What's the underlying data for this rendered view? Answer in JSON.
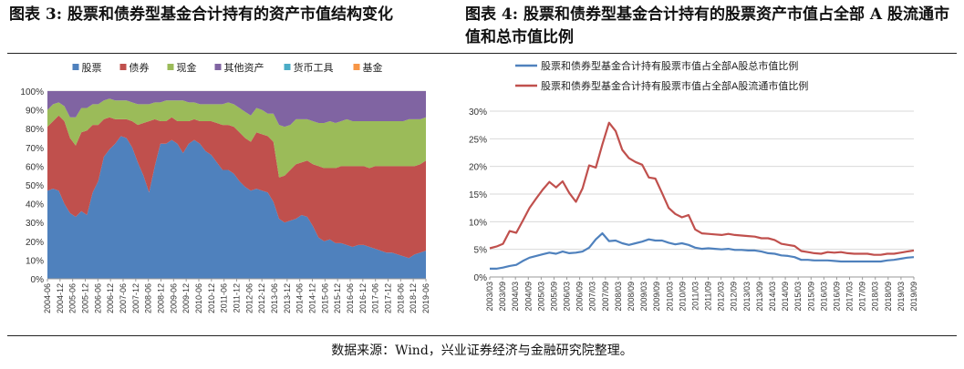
{
  "titles": {
    "left": "图表 3: 股票和债券型基金合计持有的资产市值结构变化",
    "right": "图表 4: 股票和债券型基金合计持有的股票资产市值占全部 A 股流通市值和总市值比例"
  },
  "source": "数据来源：Wind，兴业证券经济与金融研究院整理。",
  "chart_data": [
    {
      "type": "area",
      "stacked": true,
      "title": "图表 3: 股票和债券型基金合计持有的资产市值结构变化",
      "xlabel": "",
      "ylabel": "",
      "ylim": [
        0,
        100
      ],
      "yticks": [
        "0%",
        "10%",
        "20%",
        "30%",
        "40%",
        "50%",
        "60%",
        "70%",
        "80%",
        "90%",
        "100%"
      ],
      "x_ticks": [
        "2004-06",
        "2004-12",
        "2005-06",
        "2005-12",
        "2006-06",
        "2006-12",
        "2007-06",
        "2007-12",
        "2008-06",
        "2008-12",
        "2009-06",
        "2009-12",
        "2010-06",
        "2010-12",
        "2011-06",
        "2011-12",
        "2012-06",
        "2012-12",
        "2013-06",
        "2013-12",
        "2014-06",
        "2014-12",
        "2015-06",
        "2015-12",
        "2016-06",
        "2016-12",
        "2017-06",
        "2017-12",
        "2018-06",
        "2018-12",
        "2019-06"
      ],
      "legend_position": "top",
      "colors": {
        "股票": "#4f81bd",
        "债券": "#c0504d",
        "现金": "#9bbb59",
        "其他资产": "#8064a2",
        "货币工具": "#4bacc6",
        "基金": "#f79646"
      },
      "series": [
        {
          "name": "股票",
          "values": [
            47,
            48,
            47,
            40,
            35,
            33,
            36,
            34,
            46,
            52,
            65,
            69,
            72,
            76,
            75,
            70,
            62,
            55,
            46,
            60,
            72,
            72,
            74,
            72,
            67,
            72,
            74,
            72,
            68,
            66,
            62,
            58,
            58,
            56,
            52,
            49,
            47,
            48,
            47,
            46,
            41,
            32,
            30,
            31,
            32,
            34,
            33,
            28,
            22,
            20,
            21,
            19,
            19,
            18,
            17,
            18,
            18,
            17,
            16,
            15,
            14,
            14,
            13,
            12,
            11,
            13,
            14,
            15
          ]
        },
        {
          "name": "债券",
          "values": [
            34,
            36,
            40,
            44,
            40,
            38,
            42,
            45,
            36,
            30,
            20,
            17,
            13,
            9,
            10,
            14,
            20,
            28,
            38,
            25,
            12,
            12,
            12,
            12,
            17,
            12,
            11,
            12,
            16,
            18,
            21,
            24,
            24,
            25,
            26,
            26,
            26,
            30,
            30,
            30,
            32,
            22,
            25,
            27,
            29,
            28,
            30,
            33,
            38,
            39,
            38,
            40,
            41,
            42,
            43,
            42,
            42,
            42,
            44,
            45,
            46,
            46,
            47,
            48,
            49,
            47,
            47,
            48
          ]
        },
        {
          "name": "现金",
          "values": [
            9,
            9,
            7,
            8,
            11,
            15,
            13,
            12,
            11,
            11,
            10,
            10,
            10,
            10,
            10,
            10,
            11,
            10,
            9,
            9,
            10,
            11,
            9,
            11,
            11,
            10,
            9,
            9,
            9,
            9,
            10,
            11,
            12,
            12,
            13,
            14,
            14,
            13,
            13,
            12,
            15,
            28,
            26,
            24,
            24,
            23,
            22,
            23,
            23,
            24,
            25,
            24,
            24,
            25,
            24,
            24,
            24,
            25,
            24,
            24,
            24,
            24,
            24,
            24,
            25,
            25,
            24,
            23
          ]
        },
        {
          "name": "其他资产",
          "values": [
            10,
            7,
            6,
            8,
            14,
            14,
            9,
            9,
            7,
            7,
            5,
            4,
            5,
            5,
            5,
            6,
            7,
            7,
            7,
            6,
            6,
            5,
            5,
            5,
            5,
            6,
            6,
            7,
            7,
            7,
            7,
            7,
            6,
            7,
            9,
            11,
            13,
            9,
            10,
            12,
            12,
            18,
            19,
            18,
            15,
            15,
            15,
            16,
            17,
            17,
            16,
            17,
            16,
            15,
            16,
            16,
            16,
            16,
            16,
            16,
            16,
            16,
            16,
            16,
            15,
            15,
            15,
            14
          ]
        },
        {
          "name": "货币工具",
          "values": [
            0,
            0,
            0,
            0,
            0,
            0,
            0,
            0,
            0,
            0,
            0,
            0,
            0,
            0,
            0,
            0,
            0,
            0,
            0,
            0,
            0,
            0,
            0,
            0,
            0,
            0,
            0,
            0,
            0,
            0,
            0,
            0,
            0,
            0,
            0,
            0,
            0,
            0,
            0,
            0,
            0,
            0,
            0,
            0,
            0,
            0,
            0,
            0,
            0,
            0,
            0,
            0,
            0,
            0,
            0,
            0,
            0,
            0,
            0,
            0,
            0,
            0,
            0,
            0,
            0,
            0,
            0,
            0
          ]
        },
        {
          "name": "基金",
          "values": [
            0,
            0,
            0,
            0,
            0,
            0,
            0,
            0,
            0,
            0,
            0,
            0,
            0,
            0,
            0,
            0,
            0,
            0,
            0,
            0,
            0,
            0,
            0,
            0,
            0,
            0,
            0,
            0,
            0,
            0,
            0,
            0,
            0,
            0,
            0,
            0,
            0,
            0,
            0,
            0,
            0,
            0,
            0,
            0,
            0,
            0,
            0,
            0,
            0,
            0,
            0,
            0,
            0,
            0,
            0,
            0,
            0,
            0,
            0,
            0,
            0,
            0,
            0,
            0,
            0,
            0,
            0,
            0
          ]
        }
      ]
    },
    {
      "type": "line",
      "title": "图表 4: 股票和债券型基金合计持有的股票资产市值占全部 A 股流通市值和总市值比例",
      "xlabel": "",
      "ylabel": "",
      "ylim": [
        0,
        30
      ],
      "yticks": [
        "0%",
        "5%",
        "10%",
        "15%",
        "20%",
        "25%",
        "30%"
      ],
      "x_ticks": [
        "2003/03",
        "2003/09",
        "2004/03",
        "2004/09",
        "2005/03",
        "2005/09",
        "2006/03",
        "2006/09",
        "2007/03",
        "2007/09",
        "2008/03",
        "2008/09",
        "2009/03",
        "2009/09",
        "2010/03",
        "2010/09",
        "2011/03",
        "2011/09",
        "2012/03",
        "2012/09",
        "2013/03",
        "2013/09",
        "2014/03",
        "2014/09",
        "2015/03",
        "2015/09",
        "2016/03",
        "2016/09",
        "2017/03",
        "2017/09",
        "2018/03",
        "2018/09",
        "2019/03",
        "2019/09"
      ],
      "legend_position": "top",
      "series": [
        {
          "name": "股票和债券型基金合计持有股票市值占全部A股总市值比例",
          "color": "#4f81bd",
          "values": [
            1.5,
            1.5,
            1.7,
            2.0,
            2.2,
            2.9,
            3.5,
            3.8,
            4.1,
            4.4,
            4.2,
            4.6,
            4.3,
            4.4,
            4.6,
            5.3,
            6.8,
            7.9,
            6.5,
            6.6,
            6.1,
            5.8,
            6.1,
            6.4,
            6.8,
            6.6,
            6.6,
            6.2,
            5.9,
            6.1,
            5.8,
            5.3,
            5.1,
            5.2,
            5.1,
            5.0,
            5.1,
            4.9,
            4.9,
            4.8,
            4.8,
            4.6,
            4.3,
            4.2,
            3.9,
            3.8,
            3.6,
            3.1,
            3.1,
            3.0,
            3.0,
            3.0,
            2.9,
            2.8,
            2.8,
            2.8,
            2.8,
            2.8,
            2.8,
            2.8,
            3.0,
            3.1,
            3.3,
            3.5,
            3.6
          ]
        },
        {
          "name": "股票和债券型基金合计持有股票市值占全部A股流通市值比例",
          "color": "#c0504d",
          "values": [
            5.2,
            5.5,
            6.0,
            8.3,
            8.0,
            10.2,
            12.5,
            14.2,
            15.8,
            17.2,
            16.2,
            17.3,
            15.2,
            13.6,
            16.0,
            20.2,
            19.8,
            24.0,
            27.9,
            26.4,
            23.0,
            21.5,
            20.8,
            20.3,
            18.0,
            17.8,
            15.2,
            12.5,
            11.4,
            10.8,
            11.2,
            8.6,
            7.9,
            7.8,
            7.7,
            7.6,
            7.8,
            7.6,
            7.5,
            7.4,
            7.3,
            7.0,
            7.0,
            6.7,
            6.0,
            5.8,
            5.6,
            4.7,
            4.5,
            4.3,
            4.2,
            4.5,
            4.4,
            4.5,
            4.3,
            4.2,
            4.2,
            4.2,
            4.0,
            4.0,
            4.2,
            4.2,
            4.4,
            4.6,
            4.8
          ]
        }
      ]
    }
  ]
}
